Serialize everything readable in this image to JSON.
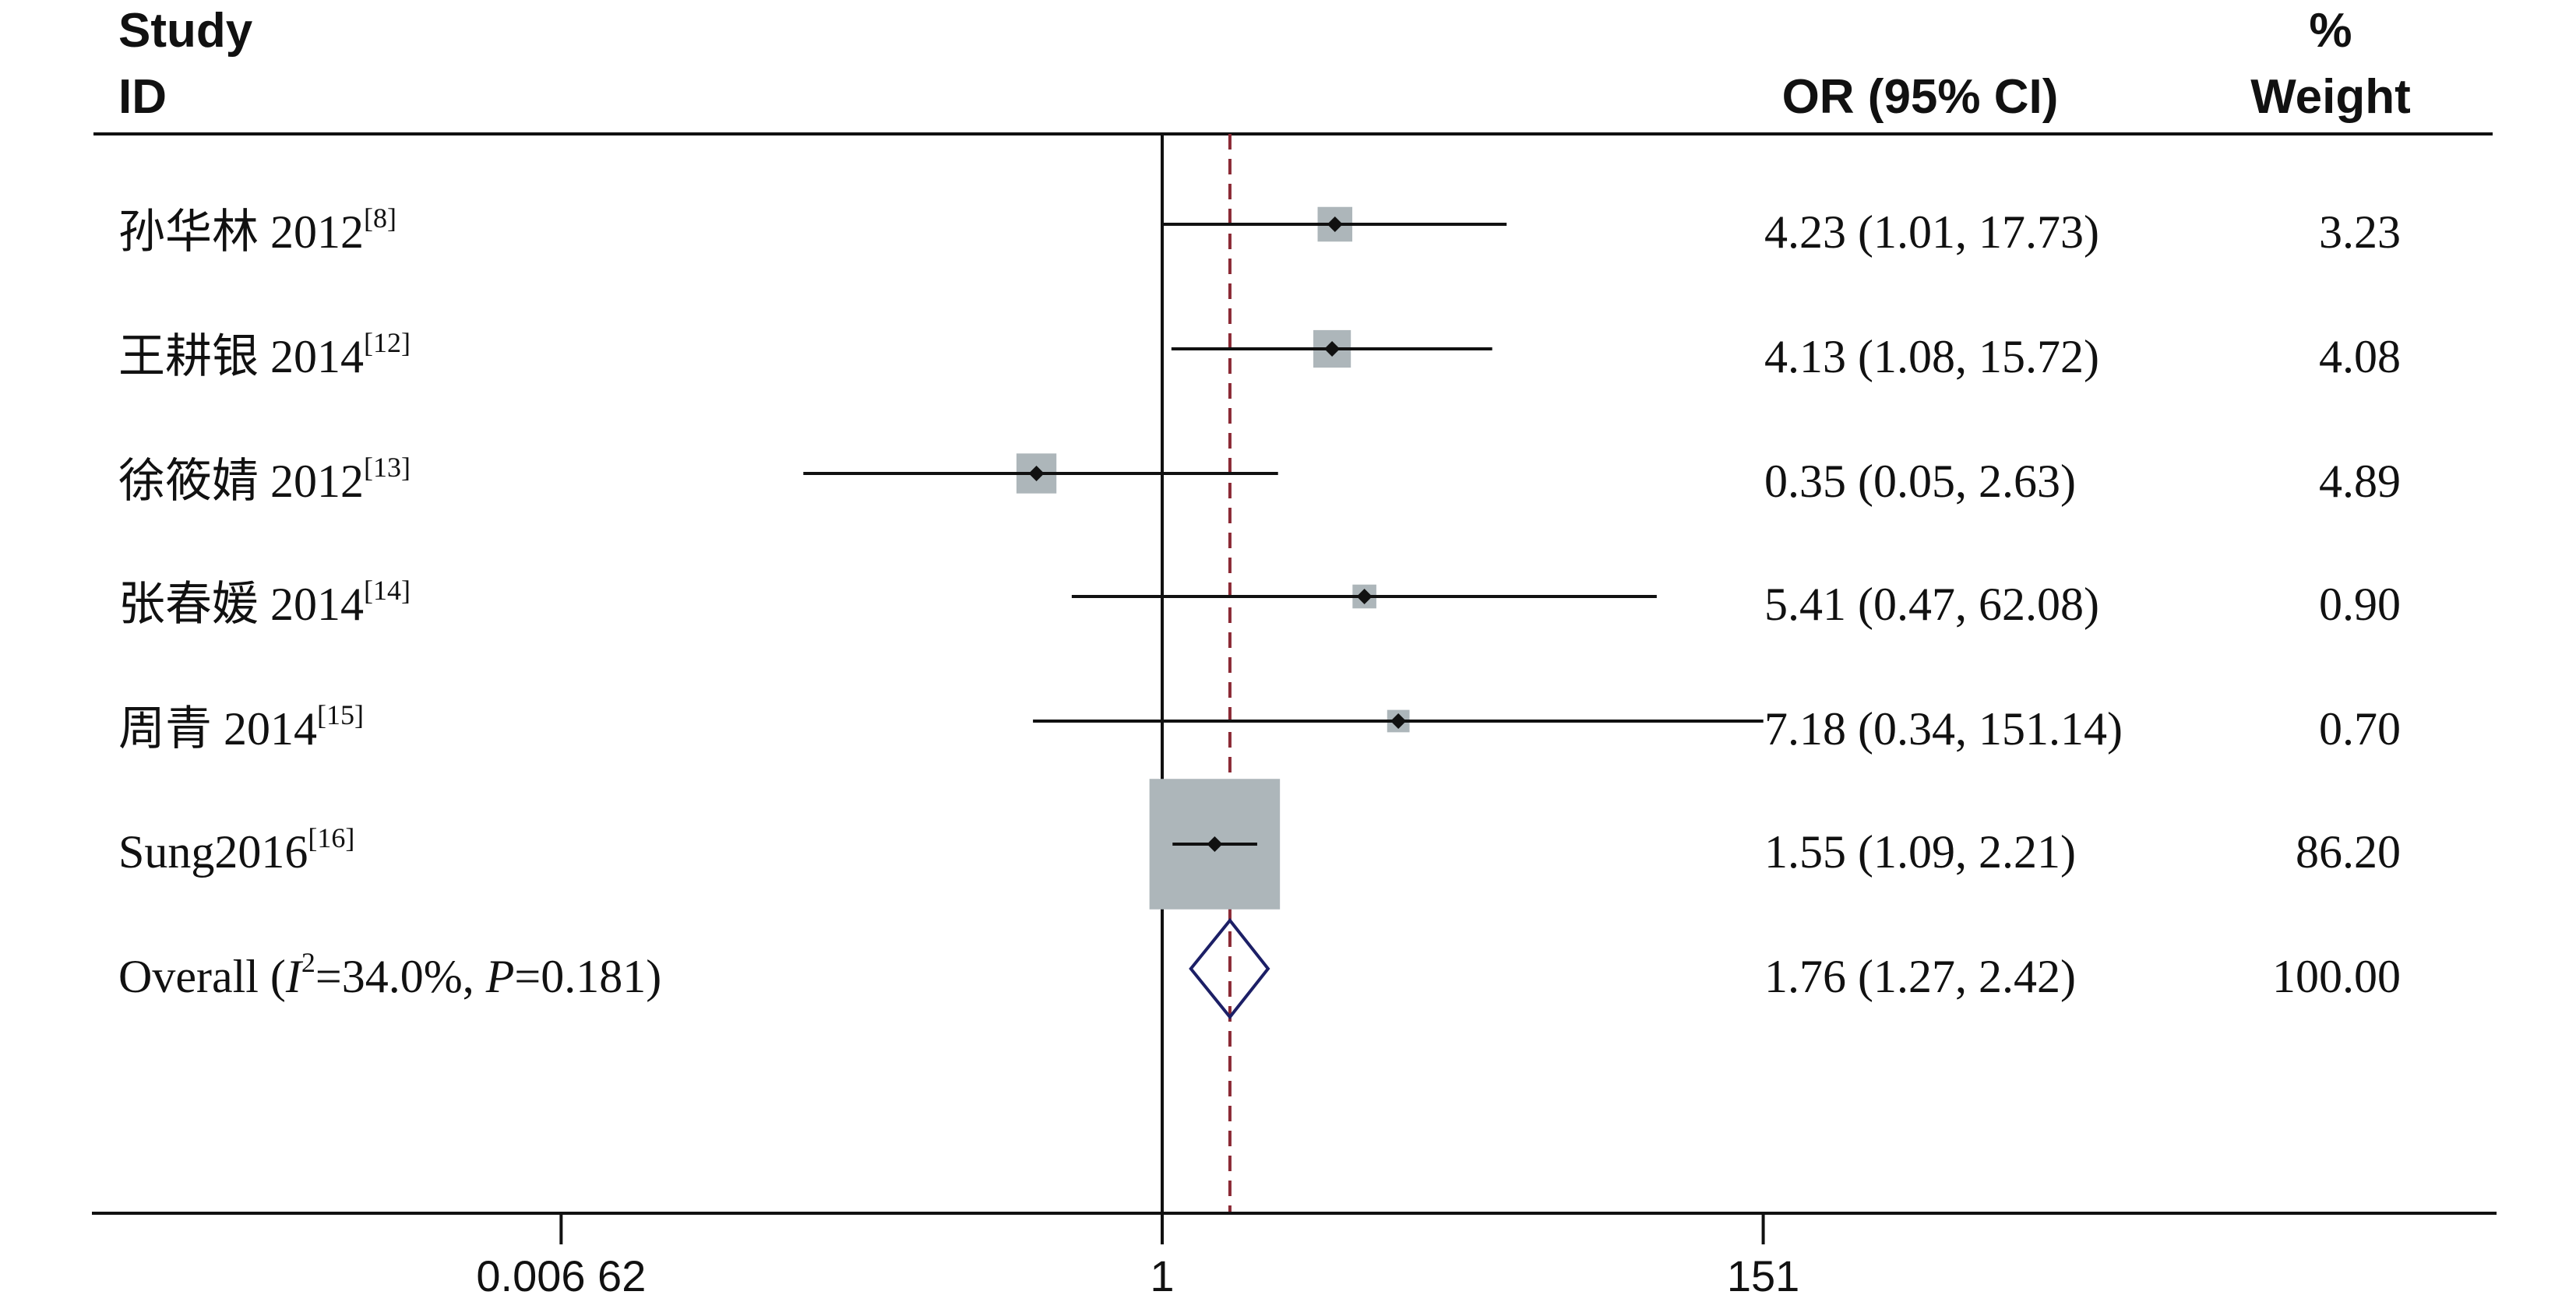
{
  "headers": {
    "study_line1": "Study",
    "study_line2": "ID",
    "or_ci": "OR (95% CI)",
    "weight_line1": "%",
    "weight_line2": "Weight"
  },
  "studies": [
    {
      "name": "孙华林 2012",
      "ref": "[8]",
      "or": 4.23,
      "lo": 1.01,
      "hi": 17.73,
      "or_text": "4.23 (1.01, 17.73)",
      "weight_text": "3.23",
      "weight": 3.23
    },
    {
      "name": "王耕银 2014",
      "ref": "[12]",
      "or": 4.13,
      "lo": 1.08,
      "hi": 15.72,
      "or_text": "4.13 (1.08, 15.72)",
      "weight_text": "4.08",
      "weight": 4.08
    },
    {
      "name": "徐筱婧 2012",
      "ref": "[13]",
      "or": 0.35,
      "lo": 0.05,
      "hi": 2.63,
      "or_text": "0.35 (0.05, 2.63)",
      "weight_text": "4.89",
      "weight": 4.89
    },
    {
      "name": "张春媛 2014",
      "ref": "[14]",
      "or": 5.41,
      "lo": 0.47,
      "hi": 62.08,
      "or_text": "5.41 (0.47, 62.08)",
      "weight_text": "0.90",
      "weight": 0.9
    },
    {
      "name": "周青 2014",
      "ref": "[15]",
      "or": 7.18,
      "lo": 0.34,
      "hi": 151.14,
      "or_text": "7.18 (0.34, 151.14)",
      "weight_text": "0.70",
      "weight": 0.7
    },
    {
      "name": "Sung2016",
      "ref": "[16]",
      "or": 1.55,
      "lo": 1.09,
      "hi": 2.21,
      "or_text": "1.55 (1.09, 2.21)",
      "weight_text": "86.20",
      "weight": 86.2
    }
  ],
  "overall": {
    "prefix": "Overall  (",
    "i2_symbol": "I",
    "i2_sup": "2",
    "i2_value": "=34.0%, ",
    "p_symbol": "P",
    "p_value": "=0.181)",
    "or": 1.76,
    "lo": 1.27,
    "hi": 2.42,
    "or_text": "1.76 (1.27, 2.42)",
    "weight_text": "100.00"
  },
  "axis": {
    "scale": "log",
    "ticks": [
      {
        "value": 0.00662,
        "label": "0.006 62"
      },
      {
        "value": 1,
        "label": "1"
      },
      {
        "value": 151,
        "label": "151"
      }
    ],
    "null_line": 1
  },
  "colors": {
    "ink": "#111111",
    "weight_box": "#adb6ba",
    "overall_line": "#8b2a35",
    "diamond": "#1c1f66"
  },
  "chart_data": {
    "type": "scatter",
    "x_scale": "log",
    "categories": [
      "孙华林 2012",
      "王耕银 2014",
      "徐筱婧 2012",
      "张春媛 2014",
      "周青 2014",
      "Sung2016",
      "Overall"
    ],
    "series": [
      {
        "name": "OR (95% CI)",
        "values": [
          4.23,
          4.13,
          0.35,
          5.41,
          7.18,
          1.55,
          1.76
        ]
      }
    ],
    "lower_ci": [
      1.01,
      1.08,
      0.05,
      0.47,
      0.34,
      1.09,
      1.27
    ],
    "upper_ci": [
      17.73,
      15.72,
      2.63,
      62.08,
      151.14,
      2.21,
      2.42
    ],
    "weights": [
      3.23,
      4.08,
      4.89,
      0.9,
      0.7,
      86.2,
      100.0
    ],
    "xlim": [
      0.00662,
      151
    ],
    "xticks": [
      0.00662,
      1,
      151
    ],
    "grid": false
  }
}
